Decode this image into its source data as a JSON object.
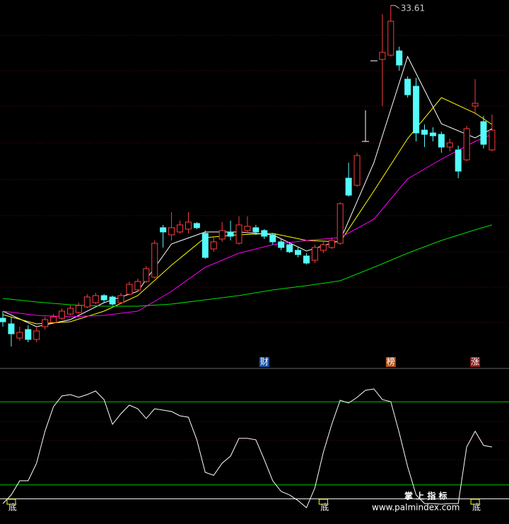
{
  "chart_data": [
    {
      "type": "candlestick",
      "open": [
        11.5,
        11.1,
        10.1,
        10.7,
        10.0,
        10.9,
        11.2,
        11.5,
        11.8,
        11.9,
        12.3,
        12.6,
        13.1,
        13.0,
        12.6,
        13.2,
        13.5,
        14.1,
        14.4,
        17.9,
        17.4,
        17.6,
        17.8,
        18.2,
        17.5,
        16.4,
        17.1,
        17.6,
        16.8,
        17.7,
        17.9,
        17.7,
        17.4,
        16.9,
        16.7,
        16.3,
        15.9,
        15.6,
        16.3,
        16.5,
        16.8,
        21.4,
        20.9,
        24.0,
        29.7,
        29.8,
        30.1,
        30.4,
        28.4,
        27.9,
        24.8,
        24.6,
        24.5,
        23.6,
        23.4,
        22.7,
        26.5,
        25.4,
        23.4
      ],
      "high": [
        12.0,
        11.6,
        10.9,
        11.0,
        10.9,
        11.6,
        11.8,
        12.2,
        12.4,
        12.6,
        13.2,
        13.3,
        13.2,
        13.1,
        13.3,
        14.1,
        14.3,
        15.2,
        17.0,
        18.1,
        19.0,
        18.4,
        19.0,
        18.3,
        17.7,
        17.2,
        18.3,
        18.4,
        18.7,
        18.7,
        18.1,
        17.8,
        17.5,
        17.1,
        16.9,
        16.5,
        16.1,
        16.7,
        16.9,
        17.2,
        19.7,
        22.5,
        23.2,
        26.2,
        29.7,
        33.0,
        33.61,
        30.7,
        28.6,
        28.5,
        25.2,
        25.0,
        24.7,
        24.2,
        23.7,
        25.1,
        28.4,
        25.8,
        25.9
      ],
      "low": [
        10.9,
        9.5,
        9.9,
        9.8,
        9.8,
        10.7,
        11.1,
        11.4,
        11.7,
        11.8,
        12.2,
        12.5,
        12.6,
        12.4,
        12.5,
        13.1,
        13.4,
        14.0,
        14.3,
        16.5,
        17.0,
        17.5,
        17.5,
        17.8,
        15.7,
        16.2,
        16.9,
        17.0,
        16.7,
        17.5,
        17.4,
        17.1,
        16.7,
        16.3,
        16.1,
        15.8,
        15.3,
        15.4,
        16.1,
        16.4,
        16.7,
        20.1,
        20.8,
        24.0,
        29.7,
        26.5,
        30.0,
        29.0,
        27.1,
        24.0,
        23.6,
        24.0,
        23.2,
        23.3,
        21.4,
        22.6,
        25.9,
        23.5,
        23.3
      ],
      "close": [
        11.25,
        10.4,
        10.5,
        10.0,
        10.6,
        11.4,
        11.6,
        12.0,
        12.2,
        12.4,
        13.0,
        13.1,
        12.8,
        12.5,
        13.1,
        13.9,
        14.1,
        15.0,
        16.8,
        17.6,
        17.9,
        18.1,
        18.3,
        17.9,
        15.8,
        16.9,
        17.7,
        17.3,
        18.1,
        18.0,
        17.6,
        17.3,
        16.9,
        16.5,
        16.2,
        16.0,
        15.4,
        16.5,
        16.7,
        17.0,
        19.6,
        20.2,
        23.0,
        24.0,
        29.7,
        30.3,
        32.5,
        29.4,
        27.3,
        24.6,
        24.5,
        24.4,
        23.6,
        23.9,
        21.9,
        24.9,
        26.7,
        23.8,
        24.8
      ],
      "up_color": "#ff3c3c",
      "down_color": "#54fcfc",
      "flat_color": "#ffffff",
      "ylim": [
        8,
        34
      ],
      "ma_x": [
        0,
        4,
        8,
        12,
        16,
        20,
        24,
        28,
        32,
        36,
        40,
        44,
        48,
        52,
        56,
        58
      ],
      "series": [
        {
          "color": "#ffffff",
          "values": [
            12.0,
            10.9,
            11.4,
            12.6,
            13.4,
            16.75,
            17.6,
            17.6,
            17.4,
            16.25,
            17.0,
            22.5,
            30.0,
            25.25,
            24.25,
            24.9
          ]
        },
        {
          "color": "#ffff00",
          "values": [
            11.75,
            11.1,
            11.25,
            12.0,
            13.1,
            15.25,
            17.2,
            17.4,
            17.5,
            17.0,
            16.9,
            20.5,
            24.2,
            27.1,
            26.0,
            25.2
          ]
        },
        {
          "color": "#ff00ff",
          "values": [
            12.0,
            11.7,
            11.6,
            11.7,
            12.0,
            13.4,
            15.1,
            16.1,
            16.7,
            17.0,
            17.2,
            18.5,
            21.35,
            22.75,
            24.0,
            24.5
          ]
        },
        {
          "color": "#00e000",
          "values": [
            12.9,
            12.65,
            12.45,
            12.35,
            12.35,
            12.5,
            12.8,
            13.1,
            13.5,
            13.8,
            14.15,
            15.1,
            16.1,
            17.0,
            17.75,
            18.1
          ]
        }
      ],
      "events": [
        {
          "index": 31,
          "label": "财",
          "color": "#1c4f9c"
        },
        {
          "index": 46,
          "label": "榜",
          "color": "#b0501a"
        },
        {
          "index": 56,
          "label": "涨",
          "color": "#8a1a1a"
        }
      ]
    },
    {
      "type": "line",
      "values": [
        6.6,
        12.8,
        23.0,
        23.0,
        35.7,
        58.7,
        76.5,
        84.2,
        85.2,
        83.2,
        85.2,
        87.8,
        81.6,
        63.8,
        71.4,
        77.6,
        75.0,
        67.9,
        75.0,
        74.0,
        73.0,
        69.9,
        68.9,
        52.6,
        29.1,
        27.0,
        35.7,
        40.8,
        53.6,
        53.6,
        52.6,
        38.3,
        23.0,
        15.3,
        12.8,
        8.7,
        3.6,
        17.9,
        43.4,
        63.8,
        81.1,
        79.1,
        83.2,
        88.3,
        89.3,
        81.6,
        80.1,
        57.7,
        33.2,
        12.8,
        6.6,
        6.6,
        6.1,
        6.6,
        6.6,
        47.4,
        58.7,
        48.5,
        47.4
      ],
      "color": "#ffffff",
      "ylim": [
        0,
        100
      ],
      "hlines": [
        {
          "value": 80,
          "color": "#00c800"
        },
        {
          "value": 20,
          "color": "#00c800"
        },
        {
          "value": 10,
          "color": "#ffffff"
        }
      ],
      "signals": {
        "index": [
          1,
          38,
          56
        ],
        "labels": [
          "底",
          "底",
          "底"
        ],
        "color": "#ffff00"
      }
    }
  ],
  "watermark": {
    "title": "掌 上 指 标",
    "url": "www.palmindex.com"
  }
}
